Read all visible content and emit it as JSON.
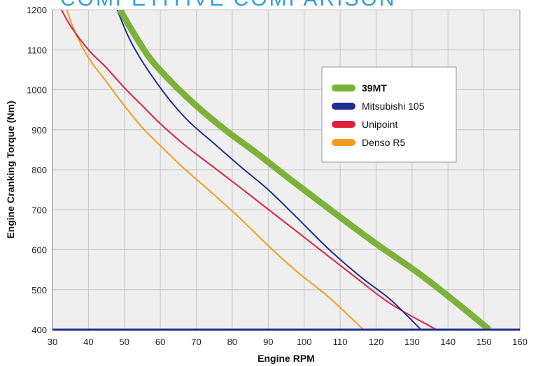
{
  "chart_data": {
    "type": "line",
    "title": "COMPETITIVE COMPARISON",
    "xlabel": "Engine RPM",
    "ylabel": "Engine Cranking Torque (Nm)",
    "xlim": [
      30,
      160
    ],
    "ylim": [
      400,
      1200
    ],
    "x_ticks": [
      "30",
      "40",
      "50",
      "60",
      "70",
      "80",
      "90",
      "100",
      "110",
      "120",
      "130",
      "140",
      "150",
      "160"
    ],
    "y_ticks": [
      "400",
      "500",
      "600",
      "700",
      "800",
      "900",
      "1000",
      "1100",
      "1200"
    ],
    "grid": true,
    "legend_position": "top-right",
    "series": [
      {
        "name": "39MT",
        "color": "#7db23a",
        "bold": true,
        "points": [
          [
            48.8,
            1200
          ],
          [
            52,
            1150
          ],
          [
            57,
            1080
          ],
          [
            63,
            1020
          ],
          [
            70,
            960
          ],
          [
            78,
            900
          ],
          [
            87,
            840
          ],
          [
            97,
            770
          ],
          [
            108,
            695
          ],
          [
            120,
            615
          ],
          [
            132,
            540
          ],
          [
            142,
            470
          ],
          [
            151.5,
            400
          ]
        ]
      },
      {
        "name": "Mitsubishi 105",
        "color": "#1e2f8f",
        "bold": false,
        "points": [
          [
            48,
            1200
          ],
          [
            51,
            1135
          ],
          [
            54,
            1085
          ],
          [
            58,
            1030
          ],
          [
            63,
            970
          ],
          [
            68,
            920
          ],
          [
            75,
            865
          ],
          [
            82,
            810
          ],
          [
            90,
            750
          ],
          [
            98,
            680
          ],
          [
            107,
            600
          ],
          [
            116,
            530
          ],
          [
            124,
            475
          ],
          [
            132.5,
            400
          ]
        ]
      },
      {
        "name": "Unipoint",
        "color": "#e01f3d",
        "bold": false,
        "points": [
          [
            32.5,
            1200
          ],
          [
            35,
            1160
          ],
          [
            40,
            1100
          ],
          [
            45,
            1055
          ],
          [
            50,
            1005
          ],
          [
            55,
            960
          ],
          [
            60,
            915
          ],
          [
            67,
            860
          ],
          [
            75,
            805
          ],
          [
            83,
            750
          ],
          [
            93,
            680
          ],
          [
            103,
            610
          ],
          [
            113,
            540
          ],
          [
            124,
            465
          ],
          [
            136.8,
            400
          ]
        ]
      },
      {
        "name": "Denso R5",
        "color": "#f39c1e",
        "bold": false,
        "points": [
          [
            34,
            1200
          ],
          [
            36,
            1150
          ],
          [
            40,
            1080
          ],
          [
            45,
            1020
          ],
          [
            50,
            960
          ],
          [
            55,
            905
          ],
          [
            60,
            860
          ],
          [
            67,
            800
          ],
          [
            74,
            745
          ],
          [
            82,
            680
          ],
          [
            90,
            610
          ],
          [
            98,
            545
          ],
          [
            107,
            480
          ],
          [
            116.5,
            400
          ]
        ]
      }
    ]
  }
}
